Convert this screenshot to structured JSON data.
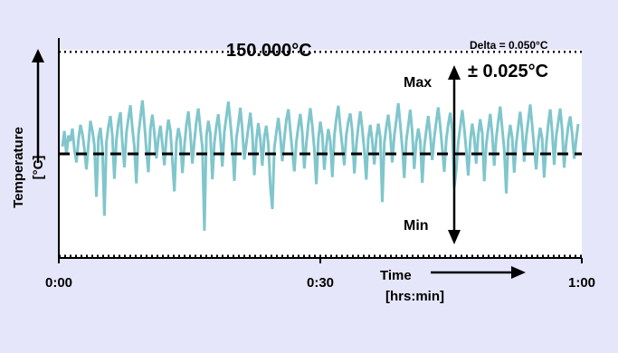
{
  "chart_data": {
    "type": "line",
    "title": "",
    "xlabel": "Time",
    "xlabel_unit": "[hrs:min]",
    "ylabel": "Temperature",
    "ylabel_unit": "[°C]",
    "x_range_minutes": [
      0,
      60
    ],
    "y_range_celsius": [
      149.9745,
      150.0255
    ],
    "x_ticks": [
      {
        "label": "0:00",
        "minutes": 0
      },
      {
        "label": "0:30",
        "minutes": 30
      },
      {
        "label": "1:00",
        "minutes": 60
      }
    ],
    "grid": false,
    "colors": {
      "background": "#e6e6fa",
      "plot_background": "#ffffff",
      "series": "#80c6cc",
      "lines": "#000000"
    },
    "reference_lines": {
      "setpoint": {
        "y": 150.0,
        "style": "dashed"
      },
      "upper_limit": {
        "y": 150.025,
        "style": "dotted"
      },
      "lower_limit": {
        "y": 149.975,
        "style": "dotted"
      }
    },
    "annotations": {
      "setpoint_label": "150.000°C",
      "delta_label": "Delta = 0.050°C",
      "tolerance_label": "± 0.025°C",
      "max_label": "Max",
      "min_label": "Min"
    },
    "series": [
      {
        "seed": 7,
        "values": [
          0.0018,
          0.0056,
          -0.0002,
          0.0045,
          0.0031,
          0.0062,
          0.0009,
          -0.0021,
          0.0034,
          0.0071,
          0.0049,
          0.0012,
          -0.0038,
          0.0022,
          0.0081,
          0.0057,
          0.0021,
          -0.0105,
          0.0039,
          0.0064,
          0.0011,
          -0.0152,
          0.0028,
          0.0067,
          0.0093,
          0.0044,
          -0.0061,
          0.0035,
          0.0078,
          0.0102,
          0.0025,
          -0.0033,
          0.0051,
          0.0087,
          0.0119,
          0.0063,
          0.0018,
          -0.0072,
          0.0046,
          0.0089,
          0.0131,
          0.0074,
          0.0009,
          -0.0045,
          0.0061,
          0.0096,
          0.0052,
          -0.0011,
          0.0037,
          0.0069,
          0.0023,
          -0.0028,
          0.0041,
          0.0084,
          0.0058,
          -0.0016,
          -0.0092,
          0.0027,
          0.0063,
          0.0039,
          -0.0047,
          0.0019,
          0.0071,
          0.0104,
          0.0048,
          -0.0024,
          0.0031,
          0.0079,
          0.0111,
          0.0062,
          0.0015,
          -0.0188,
          0.0043,
          0.0081,
          0.0049,
          -0.0062,
          0.0026,
          0.0068,
          0.0097,
          0.0042,
          -0.0031,
          0.0055,
          0.0091,
          0.0128,
          0.0077,
          0.0021,
          -0.0066,
          0.0038,
          0.0072,
          0.0113,
          0.0059,
          -0.0014,
          0.0027,
          0.0064,
          0.0101,
          0.0048,
          -0.0052,
          0.0033,
          0.0075,
          0.0036,
          -0.0029,
          0.0041,
          0.0069,
          0.0022,
          -0.0081,
          -0.0135,
          0.0015,
          0.0052,
          0.0088,
          0.0044,
          -0.0018,
          0.0037,
          0.0082,
          0.0109,
          0.0057,
          0.0006,
          -0.0043,
          0.0029,
          0.0066,
          0.0098,
          0.0051,
          -0.0036,
          0.0024,
          0.0073,
          0.0112,
          0.0068,
          0.0012,
          -0.0074,
          0.0035,
          0.0079,
          0.0047,
          -0.0039,
          0.0018,
          0.0061,
          0.0032,
          -0.0057,
          0.0044,
          0.0086,
          0.0118,
          0.0064,
          0.0019,
          -0.0028,
          0.0046,
          0.0079,
          0.0099,
          0.0056,
          -0.0048,
          0.0021,
          0.0067,
          0.0104,
          0.0061,
          0.0009,
          -0.0063,
          0.0037,
          0.0071,
          0.0033,
          -0.0026,
          0.0039,
          0.0074,
          0.0041,
          -0.0118,
          0.0026,
          0.0065,
          0.0096,
          0.0049,
          -0.0021,
          0.0043,
          0.0083,
          0.0124,
          0.0071,
          0.0016,
          -0.0059,
          0.0032,
          0.0069,
          0.0108,
          0.0054,
          -0.0037,
          0.0028,
          0.0062,
          0.0031,
          -0.0071,
          0.0017,
          0.0057,
          0.0093,
          0.0046,
          -0.0015,
          0.0039,
          0.0078,
          0.0114,
          0.0066,
          0.0013,
          -0.0044,
          0.0035,
          0.0072,
          0.0101,
          0.0058,
          -0.0082,
          -0.0041,
          0.0027,
          0.0068,
          0.0107,
          0.0062,
          0.0008,
          -0.0053,
          0.0031,
          0.0074,
          0.0042,
          -0.0024,
          0.0046,
          0.0085,
          0.0051,
          -0.0067,
          0.0023,
          0.0061,
          0.0098,
          0.0047,
          -0.0029,
          0.0038,
          0.0079,
          0.0116,
          0.0063,
          0.0011,
          -0.0097,
          0.0034,
          0.0071,
          0.0039,
          -0.0046,
          0.0025,
          0.0066,
          0.0103,
          0.0055,
          -0.0019,
          0.0042,
          0.0081,
          0.0121,
          0.0069,
          0.0014,
          -0.0038,
          0.0029,
          0.0064,
          0.0037,
          -0.0058,
          0.0021,
          0.0072,
          0.0109,
          0.0053,
          -0.0027,
          0.0044,
          0.0077,
          0.0111,
          0.0059,
          -0.0034,
          0.0026,
          0.0068,
          0.0092,
          0.0048,
          -0.0012,
          0.0035,
          0.0073
        ]
      }
    ]
  }
}
